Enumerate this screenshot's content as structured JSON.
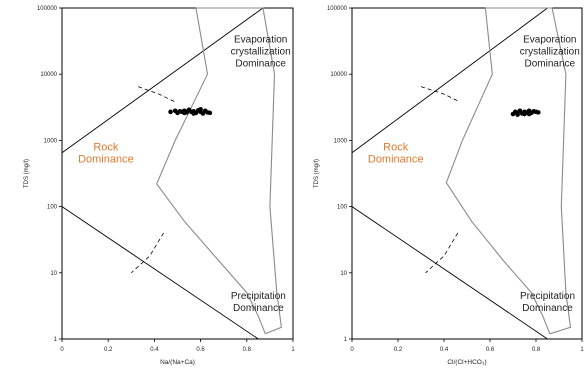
{
  "colors": {
    "rock_label": "#e07a2e",
    "envelope": "#8a8a8a",
    "lines": "#000000",
    "points": "#000000"
  },
  "chart_data": [
    {
      "type": "scatter",
      "title": "",
      "xlabel": "Na/(Na+Ca)",
      "ylabel": "TDS (mg/l)",
      "xlim": [
        0,
        1
      ],
      "ylim": [
        1,
        100000
      ],
      "yscale": "log",
      "x_ticks": [
        "0",
        "0.2",
        "0.4",
        "0.6",
        "0.8",
        "1"
      ],
      "y_ticks": [
        "1",
        "10",
        "100",
        "1000",
        "10000",
        "100000"
      ],
      "grid": false,
      "zones": {
        "rock": [
          "Rock",
          "Dominance"
        ],
        "evaporation": [
          "Evaporation",
          "crystallization",
          "Dominance"
        ],
        "precipitation": [
          "Precipitation",
          "Dominance"
        ]
      },
      "boundary_lines": {
        "upper": [
          [
            0,
            650
          ],
          [
            0.87,
            100000
          ]
        ],
        "lower": [
          [
            0,
            100
          ],
          [
            0.85,
            1
          ]
        ]
      },
      "envelope": [
        [
          0.58,
          100000
        ],
        [
          0.63,
          10000
        ],
        [
          0.49,
          1000
        ],
        [
          0.41,
          220
        ],
        [
          0.53,
          60
        ],
        [
          0.68,
          15
        ],
        [
          0.8,
          5
        ],
        [
          0.85,
          2.2
        ],
        [
          0.88,
          1.2
        ]
      ],
      "envelope_top": [
        [
          0.58,
          100000
        ],
        [
          0.87,
          100000
        ],
        [
          0.92,
          10000
        ]
      ],
      "envelope_bottom": [
        [
          0.88,
          1.2
        ],
        [
          0.95,
          1.5
        ],
        [
          0.93,
          5
        ]
      ],
      "dashed_upper": [
        [
          0.33,
          6500
        ],
        [
          0.42,
          5000
        ],
        [
          0.49,
          3800
        ]
      ],
      "dashed_lower": [
        [
          0.44,
          40
        ],
        [
          0.38,
          18
        ],
        [
          0.3,
          10
        ]
      ],
      "points": [
        [
          0.47,
          2700
        ],
        [
          0.49,
          2800
        ],
        [
          0.5,
          2600
        ],
        [
          0.51,
          2750
        ],
        [
          0.52,
          2700
        ],
        [
          0.53,
          2800
        ],
        [
          0.54,
          2650
        ],
        [
          0.55,
          2900
        ],
        [
          0.56,
          2700
        ],
        [
          0.57,
          2750
        ],
        [
          0.58,
          2600
        ],
        [
          0.59,
          2850
        ],
        [
          0.6,
          2700
        ],
        [
          0.61,
          2550
        ],
        [
          0.62,
          2800
        ],
        [
          0.63,
          2650
        ],
        [
          0.64,
          2600
        ],
        [
          0.6,
          2950
        ],
        [
          0.57,
          2550
        ],
        [
          0.53,
          2600
        ]
      ]
    },
    {
      "type": "scatter",
      "title": "",
      "xlabel": "Cl/(Cl+HCO₃)",
      "ylabel": "TDS (mg/l)",
      "xlim": [
        0,
        1
      ],
      "ylim": [
        1,
        100000
      ],
      "yscale": "log",
      "x_ticks": [
        "0",
        "0.2",
        "0.4",
        "0.6",
        "0.8",
        "1"
      ],
      "y_ticks": [
        "1",
        "10",
        "100",
        "1000",
        "10000",
        "100000"
      ],
      "grid": false,
      "zones": {
        "rock": [
          "Rock",
          "Dominance"
        ],
        "evaporation": [
          "Evaporation",
          "crystallization",
          "Dominance"
        ],
        "precipitation": [
          "Precipitation",
          "Dominance"
        ]
      },
      "boundary_lines": {
        "upper": [
          [
            0,
            650
          ],
          [
            0.85,
            100000
          ]
        ],
        "lower": [
          [
            0,
            100
          ],
          [
            0.85,
            1
          ]
        ]
      },
      "envelope": [
        [
          0.58,
          100000
        ],
        [
          0.61,
          10000
        ],
        [
          0.48,
          1000
        ],
        [
          0.41,
          230
        ],
        [
          0.52,
          60
        ],
        [
          0.66,
          15
        ],
        [
          0.78,
          5
        ],
        [
          0.83,
          2.2
        ],
        [
          0.86,
          1.2
        ]
      ],
      "envelope_top": [
        [
          0.58,
          100000
        ],
        [
          0.87,
          100000
        ],
        [
          0.93,
          10000
        ]
      ],
      "envelope_bottom": [
        [
          0.86,
          1.2
        ],
        [
          0.95,
          1.5
        ],
        [
          0.93,
          5
        ]
      ],
      "dashed_upper": [
        [
          0.3,
          6500
        ],
        [
          0.4,
          5000
        ],
        [
          0.47,
          3800
        ]
      ],
      "dashed_lower": [
        [
          0.46,
          40
        ],
        [
          0.4,
          18
        ],
        [
          0.32,
          10
        ]
      ],
      "points": [
        [
          0.7,
          2500
        ],
        [
          0.71,
          2700
        ],
        [
          0.72,
          2600
        ],
        [
          0.73,
          2800
        ],
        [
          0.74,
          2550
        ],
        [
          0.75,
          2700
        ],
        [
          0.76,
          2650
        ],
        [
          0.77,
          2800
        ],
        [
          0.78,
          2600
        ],
        [
          0.79,
          2750
        ],
        [
          0.8,
          2700
        ],
        [
          0.81,
          2650
        ],
        [
          0.72,
          2450
        ],
        [
          0.75,
          2500
        ],
        [
          0.77,
          2500
        ]
      ]
    }
  ]
}
